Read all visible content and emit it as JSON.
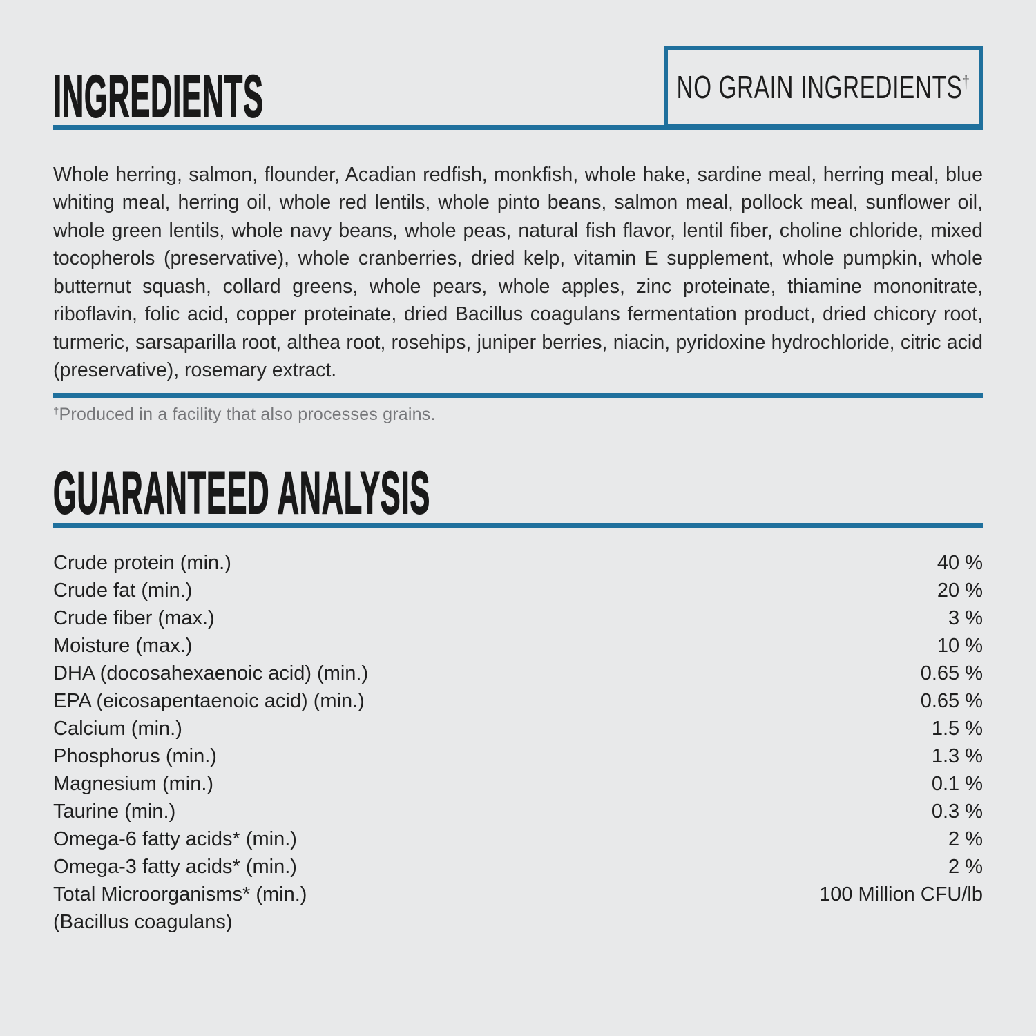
{
  "colors": {
    "background": "#e8e9ea",
    "accent_blue": "#1f709d",
    "heading_text": "#191919",
    "body_text": "#272727",
    "muted_text": "#76777a"
  },
  "ingredients": {
    "title": "INGREDIENTS",
    "badge_label": "NO GRAIN INGREDIENTS",
    "badge_dagger": "†",
    "body": "Whole herring, salmon, flounder, Acadian redfish, monkfish, whole hake, sardine meal, herring meal, blue whiting meal, herring oil, whole red lentils, whole pinto beans, salmon meal, pollock meal, sunflower oil, whole green lentils, whole navy beans, whole peas, natural fish flavor, lentil fiber, choline chloride, mixed tocopherols (preservative), whole cranberries, dried kelp, vitamin E supplement, whole pumpkin, whole butternut squash, collard greens, whole pears, whole apples, zinc proteinate, thiamine mononitrate, riboflavin, folic acid, copper proteinate, dried Bacillus coagulans fermentation product, dried chicory root, turmeric, sarsaparilla root, althea root, rosehips, juniper berries, niacin, pyridoxine hydrochloride, citric acid (preservative), rosemary extract.",
    "footnote_dagger": "†",
    "footnote": "Produced in a facility that also processes grains."
  },
  "guaranteed_analysis": {
    "title": "GUARANTEED ANALYSIS",
    "rows": [
      {
        "label": "Crude protein (min.)",
        "value": "40 %"
      },
      {
        "label": "Crude fat (min.)",
        "value": "20 %"
      },
      {
        "label": "Crude fiber (max.)",
        "value": "3 %"
      },
      {
        "label": "Moisture (max.)",
        "value": "10 %"
      },
      {
        "label": "DHA (docosahexaenoic acid) (min.)",
        "value": "0.65 %"
      },
      {
        "label": "EPA (eicosapentaenoic acid) (min.)",
        "value": "0.65 %"
      },
      {
        "label": "Calcium (min.)",
        "value": "1.5 %"
      },
      {
        "label": "Phosphorus (min.)",
        "value": "1.3 %"
      },
      {
        "label": "Magnesium (min.)",
        "value": "0.1 %"
      },
      {
        "label": "Taurine (min.)",
        "value": "0.3 %"
      },
      {
        "label": "Omega-6 fatty acids* (min.)",
        "value": "2 %"
      },
      {
        "label": "Omega-3 fatty acids* (min.)",
        "value": "2 %"
      },
      {
        "label": "Total Microorganisms* (min.)",
        "value": "100 Million CFU/lb"
      },
      {
        "label": "(Bacillus coagulans)",
        "value": ""
      }
    ]
  }
}
